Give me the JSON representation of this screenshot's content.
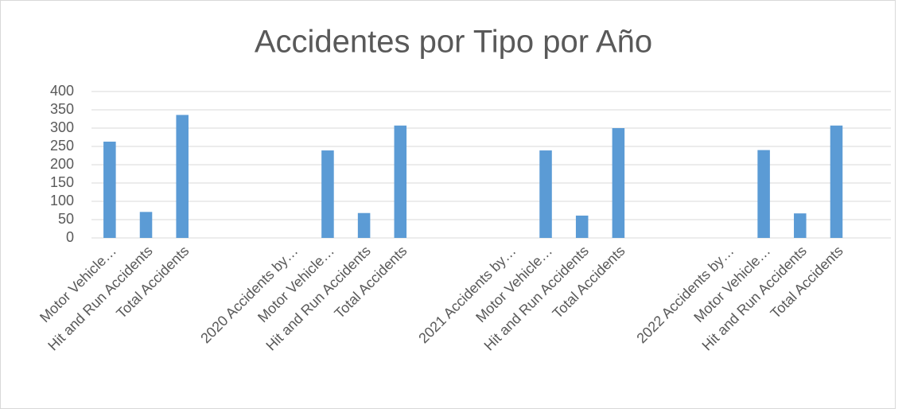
{
  "chart_data": {
    "type": "bar",
    "title": "Accidentes por Tipo por Año",
    "categories": [
      "Motor Vehicle…",
      "Hit and Run Accidents",
      "Total Accidents",
      null,
      null,
      "2020 Accidents by…",
      "Motor Vehicle…",
      "Hit and Run Accidents",
      "Total Accidents",
      null,
      null,
      "2021 Accidents by…",
      "Motor Vehicle…",
      "Hit and Run Accidents",
      "Total Accidents",
      null,
      null,
      "2022 Accidents by…",
      "Motor Vehicle…",
      "Hit and Run Accidents",
      "Total Accidents",
      null
    ],
    "values": [
      263,
      71,
      336,
      null,
      null,
      null,
      239,
      68,
      307,
      null,
      null,
      null,
      239,
      61,
      300,
      null,
      null,
      null,
      240,
      67,
      307,
      null
    ],
    "color": "#5b9bd5",
    "ylim": [
      0,
      400
    ],
    "yticks": [
      0,
      50,
      100,
      150,
      200,
      250,
      300,
      350,
      400
    ],
    "grid": true
  }
}
